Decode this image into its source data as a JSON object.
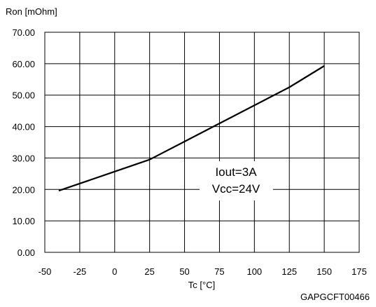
{
  "chart_data": {
    "type": "line",
    "title": "",
    "ylabel": "Ron [mOhm]",
    "xlabel": "Tc [°C]",
    "xlim": [
      -50,
      175
    ],
    "ylim": [
      0,
      70
    ],
    "x_ticks": [
      -50,
      -25,
      0,
      25,
      50,
      75,
      100,
      125,
      150,
      175
    ],
    "y_ticks": [
      0,
      10,
      20,
      30,
      40,
      50,
      60,
      70
    ],
    "x_tick_labels": [
      "-50",
      "-25",
      "0",
      "25",
      "50",
      "75",
      "100",
      "125",
      "150",
      "175"
    ],
    "y_tick_labels": [
      "0.00",
      "10.00",
      "20.00",
      "30.00",
      "40.00",
      "50.00",
      "60.00",
      "70.00"
    ],
    "grid": true,
    "series": [
      {
        "x": [
          -40,
          25,
          75,
          125,
          150
        ],
        "y": [
          19.6,
          29.5,
          41.0,
          52.5,
          59.3
        ],
        "color": "#000000"
      }
    ],
    "annotations": [
      "Iout=3A",
      "Vcc=24V"
    ],
    "footer": "GAPGCFT00466"
  }
}
